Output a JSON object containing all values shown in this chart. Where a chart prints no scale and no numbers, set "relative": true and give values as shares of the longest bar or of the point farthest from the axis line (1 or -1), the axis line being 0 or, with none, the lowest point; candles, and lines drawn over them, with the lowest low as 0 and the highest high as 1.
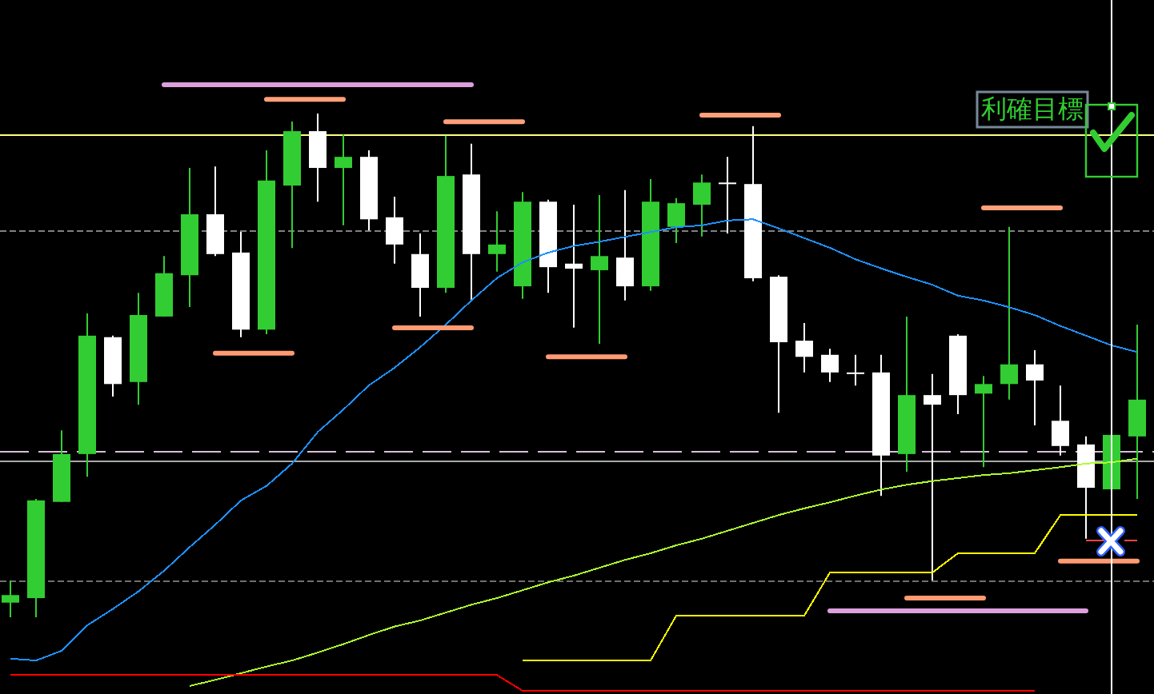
{
  "chart_data": [
    {
      "type": "candlestick",
      "relative": true,
      "categories": [
        null,
        null,
        null,
        null,
        null,
        null,
        null,
        null,
        null,
        null,
        null,
        null,
        null,
        null,
        null,
        null,
        null,
        null,
        null,
        null,
        null,
        null,
        null,
        null,
        null,
        null,
        null,
        null,
        null,
        null,
        null,
        null,
        null,
        null,
        null,
        null,
        null,
        null,
        null,
        null,
        null,
        null,
        null,
        null,
        null
      ],
      "ohlc": [
        [
          0.029,
          0.073,
          0,
          0.044
        ],
        [
          0.038,
          0.235,
          0,
          0.232
        ],
        [
          0.229,
          0.371,
          0.229,
          0.324
        ],
        [
          0.324,
          0.603,
          0.279,
          0.559
        ],
        [
          0.556,
          0.559,
          0.438,
          0.463
        ],
        [
          0.467,
          0.644,
          0.422,
          0.6
        ],
        [
          0.597,
          0.717,
          0.597,
          0.683
        ],
        [
          0.679,
          0.892,
          0.616,
          0.8
        ],
        [
          0.8,
          0.895,
          0.717,
          0.721
        ],
        [
          0.724,
          0.765,
          0.556,
          0.571
        ],
        [
          0.571,
          0.927,
          0.562,
          0.867
        ],
        [
          0.857,
          0.984,
          0.733,
          0.965
        ],
        [
          0.965,
          1,
          0.825,
          0.892
        ],
        [
          0.892,
          0.959,
          0.778,
          0.914
        ],
        [
          0.914,
          0.927,
          0.768,
          0.79
        ],
        [
          0.794,
          0.835,
          0.702,
          0.74
        ],
        [
          0.721,
          0.762,
          0.597,
          0.654
        ],
        [
          0.654,
          0.956,
          0.644,
          0.876
        ],
        [
          0.879,
          0.94,
          0.629,
          0.721
        ],
        [
          0.721,
          0.806,
          0.686,
          0.74
        ],
        [
          0.657,
          0.844,
          0.632,
          0.825
        ],
        [
          0.825,
          0.829,
          0.644,
          0.695
        ],
        [
          0.702,
          0.819,
          0.575,
          0.692
        ],
        [
          0.689,
          0.838,
          0.543,
          0.717
        ],
        [
          0.714,
          0.848,
          0.629,
          0.657
        ],
        [
          0.657,
          0.87,
          0.648,
          0.825
        ],
        [
          0.775,
          0.832,
          0.743,
          0.822
        ],
        [
          0.819,
          0.879,
          0.756,
          0.863
        ],
        [
          0.863,
          0.914,
          0.762,
          0.86
        ],
        [
          0.86,
          0.975,
          0.667,
          0.673
        ],
        [
          0.676,
          0.679,
          0.406,
          0.546
        ],
        [
          0.549,
          0.584,
          0.486,
          0.517
        ],
        [
          0.521,
          0.533,
          0.467,
          0.486
        ],
        [
          0.486,
          0.521,
          0.46,
          0.483
        ],
        [
          0.486,
          0.521,
          0.241,
          0.321
        ],
        [
          0.324,
          0.597,
          0.289,
          0.441
        ],
        [
          0.441,
          0.483,
          0.073,
          0.422
        ],
        [
          0.559,
          0.562,
          0.403,
          0.441
        ],
        [
          0.444,
          0.479,
          0.298,
          0.463
        ],
        [
          0.463,
          0.775,
          0.432,
          0.502
        ],
        [
          0.502,
          0.53,
          0.381,
          0.47
        ],
        [
          0.39,
          0.46,
          0.321,
          0.34
        ],
        [
          0.343,
          0.359,
          0.156,
          0.257
        ],
        [
          0.254,
          0.362,
          0.254,
          0.362
        ],
        [
          0.359,
          0.581,
          0.235,
          0.432
        ]
      ],
      "colors": [
        "#32cd32",
        "#32cd32",
        "#32cd32",
        "#32cd32",
        "#ffffff",
        "#32cd32",
        "#32cd32",
        "#32cd32",
        "#ffffff",
        "#ffffff",
        "#32cd32",
        "#32cd32",
        "#ffffff",
        "#32cd32",
        "#ffffff",
        "#ffffff",
        "#ffffff",
        "#32cd32",
        "#ffffff",
        "#32cd32",
        "#32cd32",
        "#ffffff",
        "#ffffff",
        "#32cd32",
        "#ffffff",
        "#32cd32",
        "#32cd32",
        "#32cd32",
        "#ffffff",
        "#ffffff",
        "#ffffff",
        "#ffffff",
        "#ffffff",
        "#ffffff",
        "#ffffff",
        "#32cd32",
        "#ffffff",
        "#ffffff",
        "#32cd32",
        "#32cd32",
        "#ffffff",
        "#ffffff",
        "#ffffff",
        "#32cd32",
        "#32cd32"
      ],
      "ref_lines": [
        {
          "axis": "y",
          "value": 0.956,
          "color": "#ffff80",
          "label": "利確目標"
        },
        {
          "axis": "y",
          "value": 0.768,
          "color": "#808080",
          "line_style": "dotted"
        },
        {
          "axis": "y",
          "value": 0.327,
          "color": "#d8bfd8",
          "line_style": "dashed"
        },
        {
          "axis": "y",
          "value": 0.308,
          "color": "#a9a9a9"
        },
        {
          "axis": "y",
          "value": 0.07,
          "color": "#707070",
          "line_style": "dotted"
        }
      ]
    },
    {
      "type": "line",
      "relative": true,
      "categories": [
        null,
        null,
        null,
        null,
        null,
        null,
        null,
        null,
        null,
        null,
        null,
        null,
        null,
        null,
        null,
        null,
        null,
        null,
        null,
        null,
        null,
        null,
        null,
        null,
        null,
        null,
        null,
        null,
        null,
        null,
        null,
        null,
        null,
        null,
        null,
        null,
        null,
        null,
        null,
        null,
        null,
        null,
        null,
        null,
        null
      ],
      "series": [
        {
          "color": "#1e90ff",
          "values": [
            0.053,
            0.05,
            0.066,
            0.108,
            0.135,
            0.164,
            0.198,
            0.237,
            0.274,
            0.314,
            0.338,
            0.375,
            0.427,
            0.464,
            0.504,
            0.533,
            0.567,
            0.604,
            0.644,
            0.681,
            0.707,
            0.723,
            0.734,
            0.741,
            0.749,
            0.757,
            0.765,
            0.768,
            0.776,
            0.778,
            0.763,
            0.747,
            0.731,
            0.712,
            0.697,
            0.683,
            0.67,
            0.652,
            0.644,
            0.633,
            0.62,
            0.602,
            0.586,
            0.57,
            0.559
          ]
        },
        {
          "color": "#adff2f",
          "values": [
            null,
            null,
            null,
            null,
            null,
            null,
            null,
            0.008,
            0.018,
            0.029,
            0.04,
            0.05,
            0.063,
            0.077,
            0.092,
            0.106,
            0.116,
            0.129,
            0.142,
            0.153,
            0.166,
            0.179,
            0.19,
            0.203,
            0.216,
            0.227,
            0.24,
            0.251,
            0.264,
            0.277,
            0.29,
            0.301,
            0.311,
            0.322,
            0.332,
            0.34,
            0.346,
            0.351,
            0.356,
            0.359,
            0.364,
            0.369,
            0.375,
            0.377,
            0.383
          ]
        },
        {
          "color": "#ffff00",
          "values": [
            null,
            null,
            null,
            null,
            null,
            null,
            null,
            null,
            null,
            null,
            null,
            null,
            null,
            null,
            null,
            null,
            null,
            null,
            null,
            null,
            0.05,
            0.05,
            0.05,
            0.05,
            0.05,
            0.05,
            0.124,
            0.124,
            0.124,
            0.124,
            0.124,
            0.124,
            0.195,
            0.195,
            0.195,
            0.195,
            0.195,
            0.227,
            0.227,
            0.227,
            0.227,
            0.29,
            0.29,
            0.29,
            0.29
          ]
        },
        {
          "color": "#ff0000",
          "values": [
            0.026,
            0.026,
            0.026,
            0.026,
            0.026,
            0.026,
            0.026,
            0.026,
            0.026,
            0.026,
            0.026,
            0.026,
            0.026,
            0.026,
            0.026,
            0.026,
            0.026,
            0.026,
            0.026,
            0.026,
            0,
            0,
            0,
            0,
            0,
            0,
            0,
            0,
            0,
            0,
            0,
            0,
            0,
            0,
            0,
            0,
            0,
            0,
            0,
            0,
            0,
            null,
            null,
            null,
            null
          ]
        },
        {
          "color": "#dda0dd",
          "values": [
            null,
            null,
            null,
            null,
            null,
            null,
            1,
            1,
            1,
            1,
            1,
            1,
            1,
            1,
            1,
            1,
            1,
            1,
            1,
            null,
            null,
            null,
            null,
            null,
            null,
            null,
            null,
            null,
            null,
            null,
            null,
            null,
            0.132,
            0.132,
            0.132,
            0.132,
            0.132,
            0.132,
            0.132,
            0.132,
            0.132,
            0.132,
            0.132,
            null,
            null
          ]
        },
        {
          "color": "#ffa07a",
          "values": [
            null,
            null,
            null,
            null,
            null,
            null,
            null,
            null,
            null,
            null,
            0.976,
            0.976,
            0.976,
            0.976,
            null,
            null,
            null,
            0.939,
            0.939,
            0.939,
            0.939,
            null,
            null,
            null,
            null,
            null,
            null,
            0.95,
            0.95,
            0.95,
            0.95,
            null,
            null,
            null,
            null,
            null,
            null,
            null,
            0.797,
            0.797,
            0.797,
            0.797,
            null,
            null,
            null
          ]
        },
        {
          "color": "#ff9a72",
          "values": [
            null,
            null,
            null,
            null,
            null,
            null,
            null,
            null,
            0.557,
            0.557,
            0.557,
            0.557,
            null,
            null,
            null,
            0.599,
            0.599,
            0.599,
            0.599,
            null,
            null,
            0.551,
            0.551,
            0.551,
            0.551,
            null,
            null,
            null,
            null,
            null,
            null,
            null,
            null,
            null,
            null,
            0.153,
            0.153,
            0.153,
            0.153,
            null,
            null,
            0.214,
            0.214,
            0.214,
            0.214
          ]
        },
        {
          "color": "#ff4444",
          "line_style": "dashed",
          "values": [
            null,
            null,
            null,
            null,
            null,
            null,
            null,
            null,
            null,
            null,
            null,
            null,
            null,
            null,
            null,
            null,
            null,
            null,
            null,
            null,
            null,
            null,
            null,
            null,
            null,
            null,
            null,
            null,
            null,
            null,
            null,
            null,
            null,
            null,
            null,
            null,
            null,
            null,
            null,
            null,
            null,
            null,
            0.248,
            0.248,
            0.248
          ]
        }
      ]
    }
  ]
}
